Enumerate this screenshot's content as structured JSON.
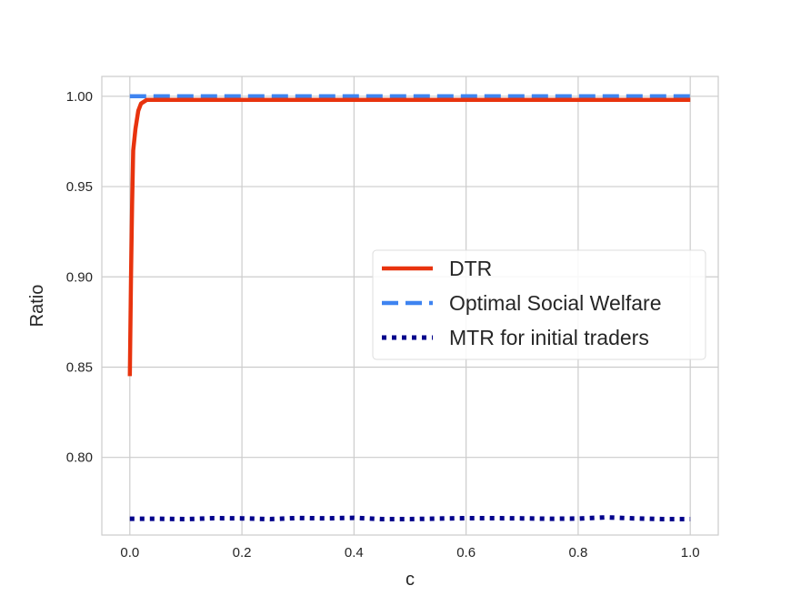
{
  "chart_data": {
    "type": "line",
    "title": "",
    "xlabel": "c",
    "ylabel": "Ratio",
    "xlim": [
      -0.05,
      1.05
    ],
    "ylim": [
      0.757,
      1.011
    ],
    "grid": true,
    "legend_position": "center-right",
    "xticks": [
      0.0,
      0.2,
      0.4,
      0.6,
      0.8,
      1.0
    ],
    "xtick_labels": [
      "0.0",
      "0.2",
      "0.4",
      "0.6",
      "0.8",
      "1.0"
    ],
    "yticks": [
      0.8,
      0.85,
      0.9,
      0.95,
      1.0
    ],
    "ytick_labels": [
      "0.80",
      "0.85",
      "0.90",
      "0.95",
      "1.00"
    ],
    "series": [
      {
        "name": "DTR",
        "color": "#e8330e",
        "style": "solid",
        "x": [
          0.0,
          0.002,
          0.004,
          0.006,
          0.01,
          0.015,
          0.02,
          0.03,
          0.05,
          0.1,
          0.2,
          0.3,
          0.4,
          0.5,
          0.6,
          0.7,
          0.8,
          0.9,
          1.0
        ],
        "y": [
          0.845,
          0.9,
          0.94,
          0.97,
          0.982,
          0.992,
          0.996,
          0.998,
          0.998,
          0.998,
          0.998,
          0.998,
          0.998,
          0.998,
          0.998,
          0.998,
          0.998,
          0.998,
          0.998
        ]
      },
      {
        "name": "Optimal Social Welfare",
        "color": "#3f84f0",
        "style": "dashed",
        "x": [
          0.0,
          1.0
        ],
        "y": [
          1.0,
          1.0
        ]
      },
      {
        "name": "MTR for initial traders",
        "color": "#00008b",
        "style": "dotted",
        "x": [
          0.0,
          0.05,
          0.1,
          0.15,
          0.2,
          0.25,
          0.3,
          0.35,
          0.4,
          0.45,
          0.5,
          0.55,
          0.6,
          0.65,
          0.7,
          0.75,
          0.8,
          0.85,
          0.9,
          0.95,
          1.0
        ],
        "y": [
          0.766,
          0.766,
          0.7658,
          0.7663,
          0.7662,
          0.7658,
          0.7664,
          0.7662,
          0.7665,
          0.7658,
          0.7658,
          0.7661,
          0.7663,
          0.7663,
          0.7662,
          0.766,
          0.7661,
          0.7668,
          0.7662,
          0.7658,
          0.7658
        ]
      }
    ]
  }
}
